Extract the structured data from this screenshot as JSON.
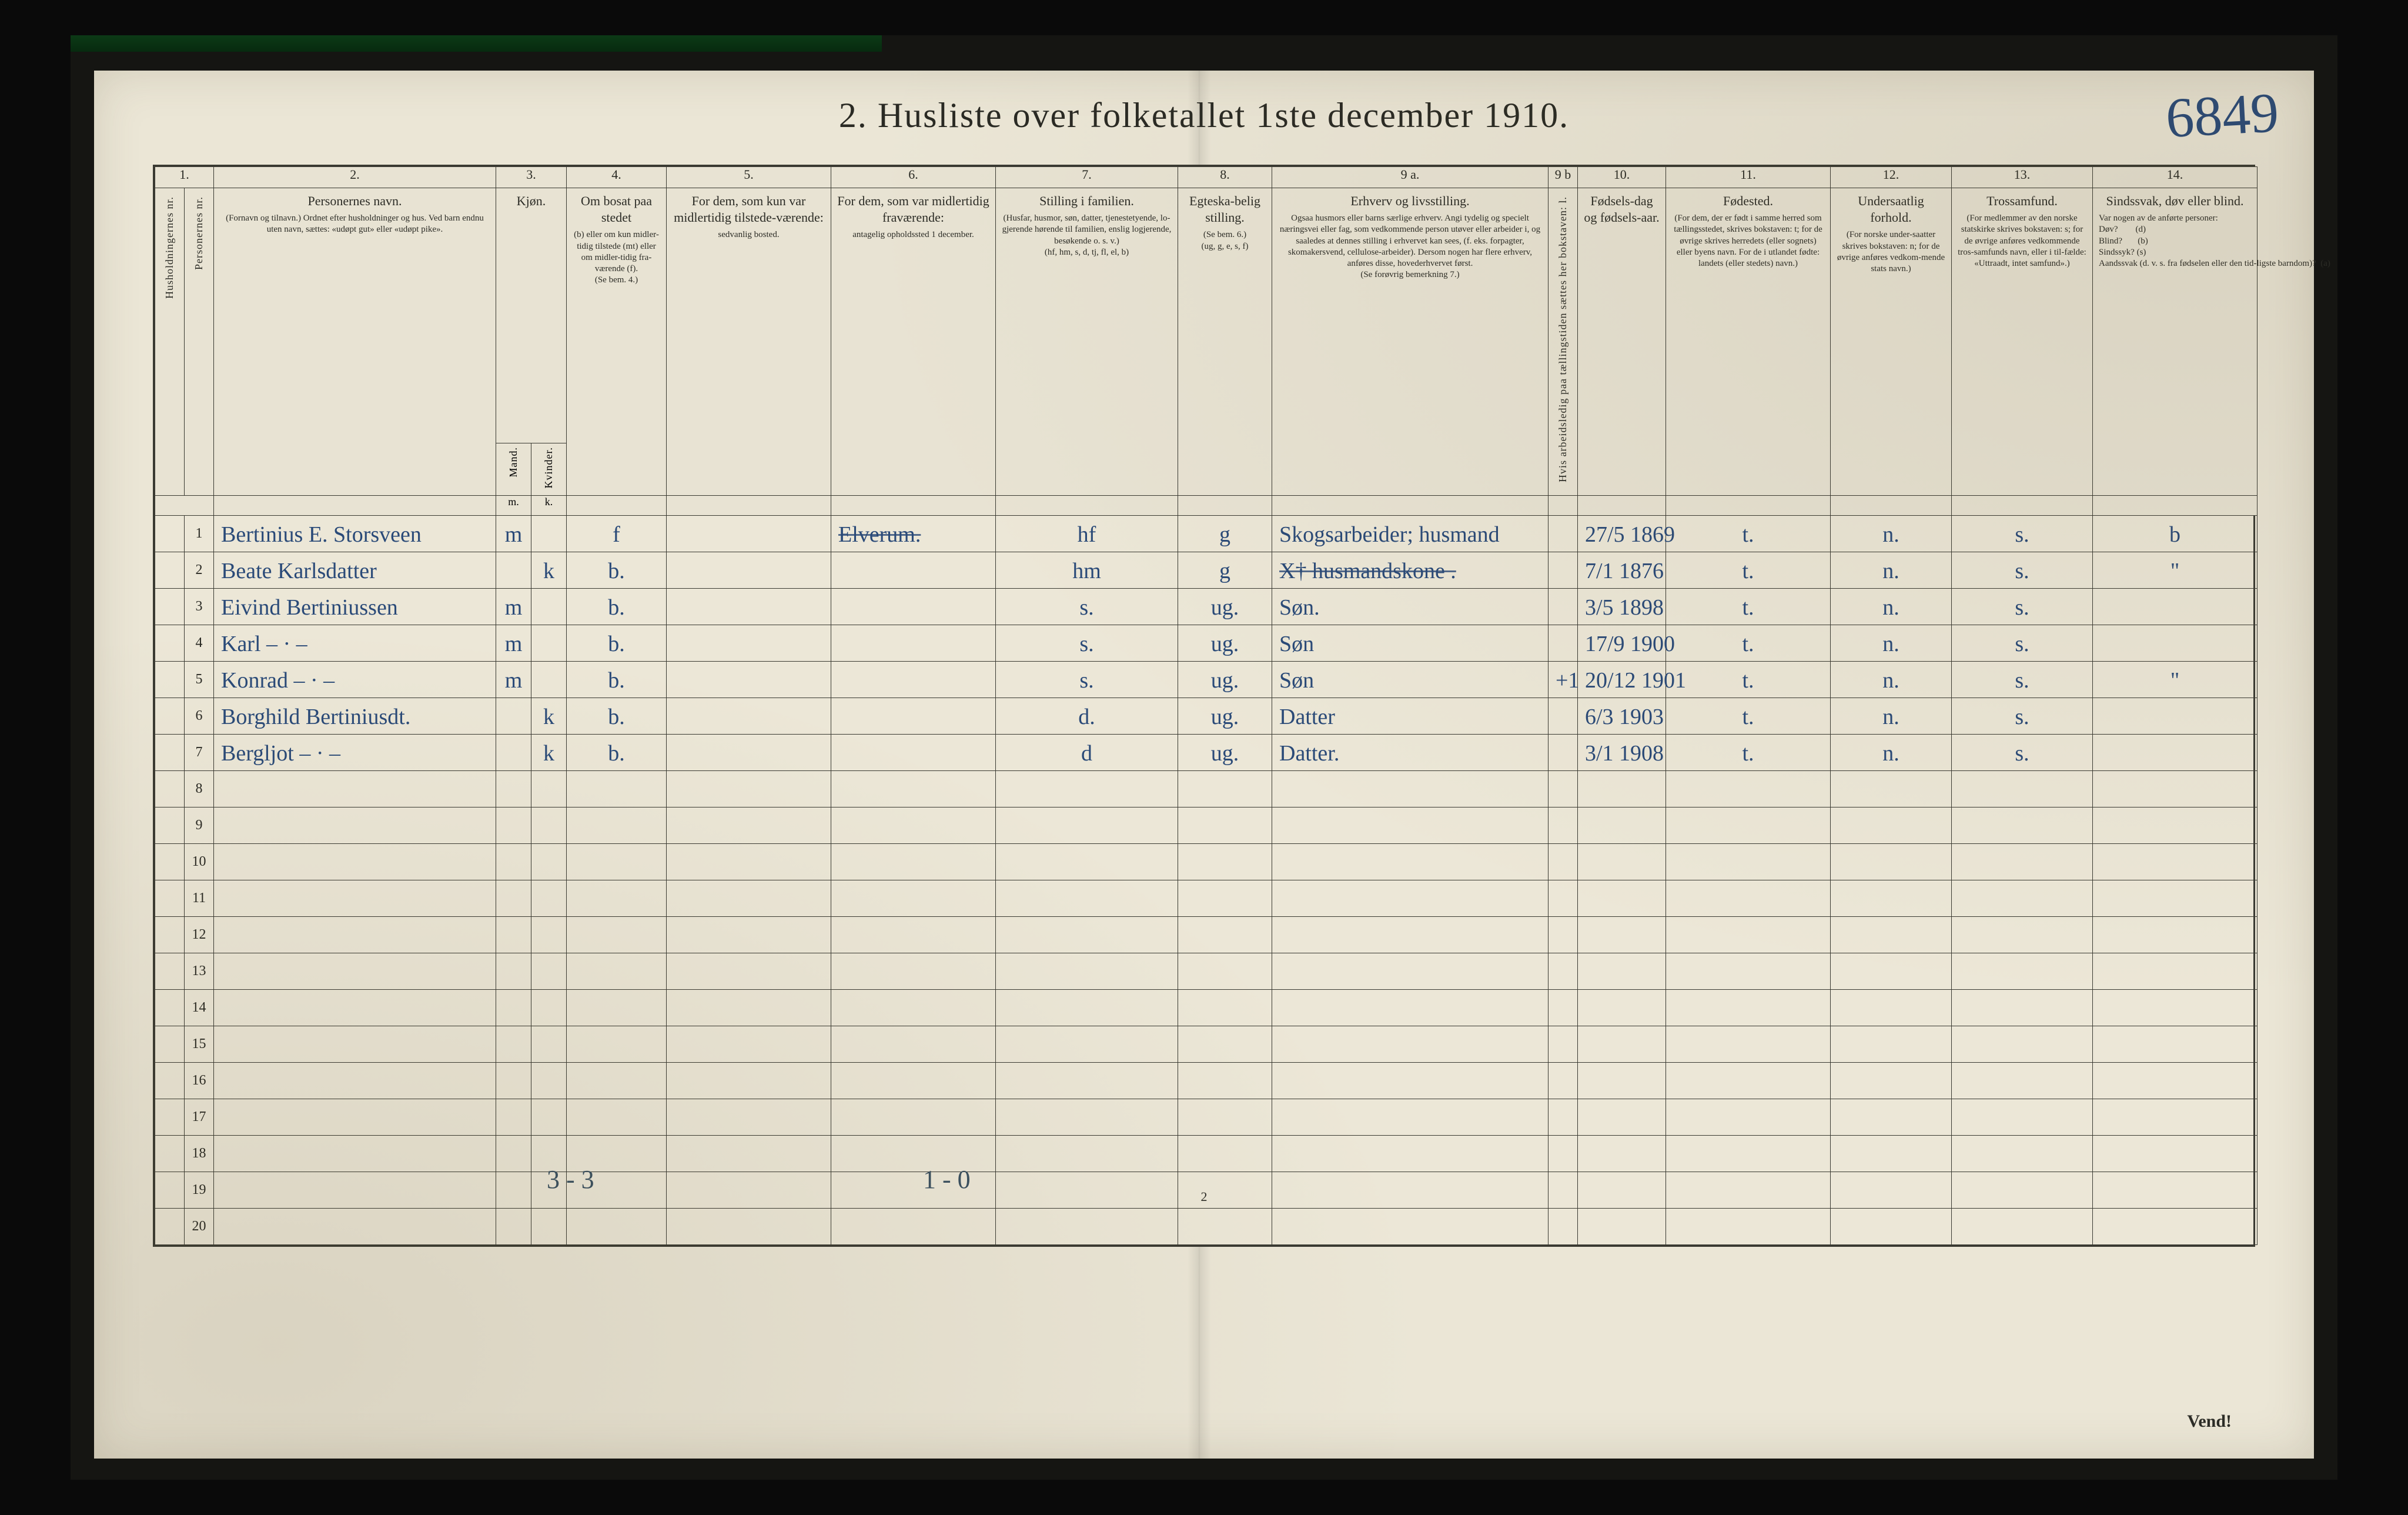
{
  "title": "2.  Husliste over folketallet 1ste december 1910.",
  "page_annotation": "6849",
  "footer_page_num": "2",
  "footer_right": "Vend!",
  "below_left": "3 - 3",
  "below_mid": "1 - 0",
  "colors": {
    "paper": "#ebe6d6",
    "ink_print": "#2a2a24",
    "ink_hand": "#2a4a78",
    "rule": "#3a3a32",
    "frame_bg": "#151512",
    "page_bg": "#0a0a0a"
  },
  "column_numbers": [
    "1.",
    "",
    "2.",
    "3.",
    "",
    "4.",
    "5.",
    "6.",
    "7.",
    "8.",
    "9 a.",
    "9 b",
    "10.",
    "11.",
    "12.",
    "13.",
    "14."
  ],
  "headers": {
    "c1a": "Husholdningernes nr.",
    "c1b": "Personernes nr.",
    "c2": {
      "lead": "Personernes navn.",
      "body": "(Fornavn og tilnavn.)\nOrdnet efter husholdninger og hus.\nVed barn endnu uten navn, sættes: «udøpt gut» eller «udøpt pike»."
    },
    "c3": {
      "lead": "Kjøn.",
      "sub_m": "Mand.",
      "sub_k": "Kvinder.",
      "foot_m": "m.",
      "foot_k": "k."
    },
    "c4": {
      "lead": "Om bosat paa stedet",
      "body": "(b) eller om kun midler-tidig tilstede (mt) eller om midler-tidig fra-værende (f).",
      "foot": "(Se bem. 4.)"
    },
    "c5": {
      "lead": "For dem, som kun var midlertidig tilstede-værende:",
      "body": "sedvanlig bosted."
    },
    "c6": {
      "lead": "For dem, som var midlertidig fraværende:",
      "body": "antagelig opholdssted 1 december."
    },
    "c7": {
      "lead": "Stilling i familien.",
      "body": "(Husfar, husmor, søn, datter, tjenestetyende, lo-gjerende hørende til familien, enslig logjerende, besøkende o. s. v.)",
      "foot": "(hf, hm, s, d, tj, fl, el, b)"
    },
    "c8": {
      "lead": "Egteska-belig stilling.",
      "body": "(Se bem. 6.)",
      "foot": "(ug, g, e, s, f)"
    },
    "c9a": {
      "lead": "Erhverv og livsstilling.",
      "body": "Ogsaa husmors eller barns særlige erhverv. Angi tydelig og specielt næringsvei eller fag, som vedkommende person utøver eller arbeider i, og saaledes at dennes stilling i erhvervet kan sees, (f. eks. forpagter, skomakersvend, cellulose-arbeider). Dersom nogen har flere erhverv, anføres disse, hovederhvervet først.",
      "foot": "(Se forøvrig bemerkning 7.)"
    },
    "c9b": "Hvis arbeidsledig paa tællingstiden sættes her bokstaven: l.",
    "c10": {
      "lead": "Fødsels-dag og fødsels-aar."
    },
    "c11": {
      "lead": "Fødested.",
      "body": "(For dem, der er født i samme herred som tællingsstedet, skrives bokstaven: t; for de øvrige skrives herredets (eller sognets) eller byens navn. For de i utlandet fødte: landets (eller stedets) navn.)"
    },
    "c12": {
      "lead": "Undersaatlig forhold.",
      "body": "(For norske under-saatter skrives bokstaven: n; for de øvrige anføres vedkom-mende stats navn.)"
    },
    "c13": {
      "lead": "Trossamfund.",
      "body": "(For medlemmer av den norske statskirke skrives bokstaven: s; for de øvrige anføres vedkommende tros-samfunds navn, eller i til-fælde: «Uttraadt, intet samfund».)"
    },
    "c14": {
      "lead": "Sindssvak, døv eller blind.",
      "body": "Var nogen av de anførte personer:\nDøv?        (d)\nBlind?       (b)\nSindssyk? (s)\nAandssvak (d. v. s. fra fødselen eller den tid-ligste barndom)?  (a)"
    }
  },
  "rows": [
    {
      "n": "1",
      "name": "Bertinius E. Storsveen",
      "mk": "m",
      "res": "f",
      "c5": "",
      "c6": "Elverum.",
      "fam": "hf",
      "egt": "g",
      "erhv": "Skogsarbeider; husmand",
      "c9b": "",
      "dob": "27/5 1869",
      "fsted": "t.",
      "und": "n.",
      "tro": "s.",
      "c14": "b"
    },
    {
      "n": "2",
      "name": "Beate Karlsdatter",
      "mk": "k",
      "res": "b.",
      "c5": "",
      "c6": "",
      "fam": "hm",
      "egt": "g",
      "erhv": "X† husmandskone .",
      "c9b": "",
      "dob": "7/1 1876",
      "fsted": "t.",
      "und": "n.",
      "tro": "s.",
      "c14": "\""
    },
    {
      "n": "3",
      "name": "Eivind Bertiniussen",
      "mk": "m",
      "res": "b.",
      "c5": "",
      "c6": "",
      "fam": "s.",
      "egt": "ug.",
      "erhv": "Søn.",
      "c9b": "",
      "dob": "3/5 1898",
      "fsted": "t.",
      "und": "n.",
      "tro": "s.",
      "c14": ""
    },
    {
      "n": "4",
      "name": "Karl      – · –",
      "mk": "m",
      "res": "b.",
      "c5": "",
      "c6": "",
      "fam": "s.",
      "egt": "ug.",
      "erhv": "Søn",
      "c9b": "",
      "dob": "17/9 1900",
      "fsted": "t.",
      "und": "n.",
      "tro": "s.",
      "c14": ""
    },
    {
      "n": "5",
      "name": "Konrad    – · –",
      "mk": "m",
      "res": "b.",
      "c5": "",
      "c6": "",
      "fam": "s.",
      "egt": "ug.",
      "erhv": "Søn",
      "c9b": "+1",
      "dob": "20/12 1901",
      "fsted": "t.",
      "und": "n.",
      "tro": "s.",
      "c14": "\""
    },
    {
      "n": "6",
      "name": "Borghild Bertiniusdt.",
      "mk": "k",
      "res": "b.",
      "c5": "",
      "c6": "",
      "fam": "d.",
      "egt": "ug.",
      "erhv": "Datter",
      "c9b": "",
      "dob": "6/3 1903",
      "fsted": "t.",
      "und": "n.",
      "tro": "s.",
      "c14": ""
    },
    {
      "n": "7",
      "name": "Bergljot   – · –",
      "mk": "k",
      "res": "b.",
      "c5": "",
      "c6": "",
      "fam": "d",
      "egt": "ug.",
      "erhv": "Datter.",
      "c9b": "",
      "dob": "3/1 1908",
      "fsted": "t.",
      "und": "n.",
      "tro": "s.",
      "c14": ""
    }
  ],
  "blank_rows": [
    "8",
    "9",
    "10",
    "11",
    "12",
    "13",
    "14",
    "15",
    "16",
    "17",
    "18",
    "19",
    "20"
  ]
}
